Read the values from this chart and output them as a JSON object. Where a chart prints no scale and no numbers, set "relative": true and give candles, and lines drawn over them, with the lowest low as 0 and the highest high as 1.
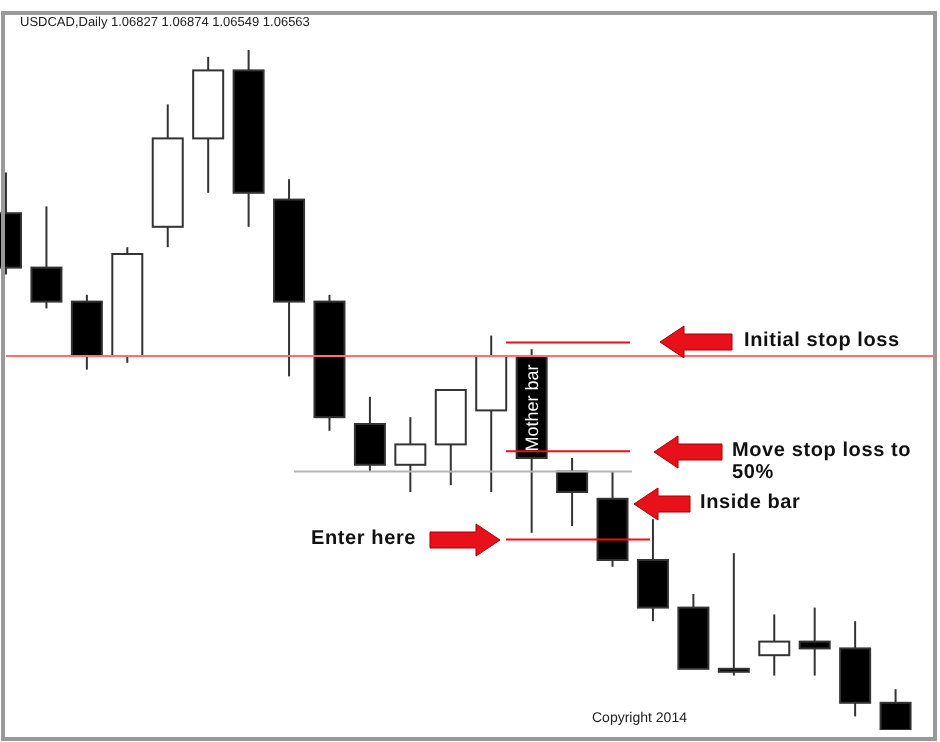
{
  "chart_data": {
    "type": "candlestick",
    "title": "USDCAD,Daily 1.06827 1.06874 1.06549 1.06563",
    "relative": true,
    "categories": [
      null,
      null,
      null,
      null,
      null,
      null,
      null,
      null,
      null,
      null,
      null,
      null,
      null,
      null,
      null,
      null,
      null,
      null,
      null,
      null,
      null,
      null,
      null
    ],
    "ohlc": [
      [
        0.76,
        0.82,
        0.67,
        0.68
      ],
      [
        0.68,
        0.77,
        0.62,
        0.63
      ],
      [
        0.63,
        0.64,
        0.53,
        0.55
      ],
      [
        0.55,
        0.71,
        0.54,
        0.7
      ],
      [
        0.74,
        0.92,
        0.71,
        0.87
      ],
      [
        0.87,
        0.99,
        0.79,
        0.97
      ],
      [
        0.97,
        1,
        0.74,
        0.79
      ],
      [
        0.78,
        0.81,
        0.52,
        0.63
      ],
      [
        0.63,
        0.64,
        0.44,
        0.46
      ],
      [
        0.45,
        0.49,
        0.38,
        0.39
      ],
      [
        0.39,
        0.46,
        0.35,
        0.42
      ],
      [
        0.42,
        0.5,
        0.36,
        0.5
      ],
      [
        0.47,
        0.58,
        0.35,
        0.55
      ],
      [
        0.55,
        0.56,
        0.29,
        0.4
      ],
      [
        0.38,
        0.4,
        0.3,
        0.35
      ],
      [
        0.34,
        0.38,
        0.24,
        0.25
      ],
      [
        0.25,
        0.31,
        0.16,
        0.18
      ],
      [
        0.18,
        0.2,
        0.09,
        0.09
      ],
      [
        0.09,
        0.26,
        0.08,
        0.09
      ],
      [
        0.11,
        0.17,
        0.08,
        0.13
      ],
      [
        0.13,
        0.18,
        0.08,
        0.12
      ],
      [
        0.12,
        0.16,
        0.02,
        0.04
      ],
      [
        0.04,
        0.06,
        0,
        0
      ]
    ],
    "ref_lines": [
      {
        "axis": "y",
        "value": 0.55,
        "color": "#ff7070"
      },
      {
        "axis": "y",
        "value": 0.38,
        "color": "#b4b4b4"
      },
      {
        "axis": "y",
        "value": 0.57,
        "color": "#e8101a"
      },
      {
        "axis": "y",
        "value": 0.41,
        "color": "#e8101a"
      },
      {
        "axis": "y",
        "value": 0.28,
        "color": "#e8101a"
      }
    ],
    "annotations": [
      "Initial stop loss",
      "Move stop loss to 50%",
      "Inside bar",
      "Enter here",
      "Mother bar",
      "Copyright 2014"
    ]
  }
}
